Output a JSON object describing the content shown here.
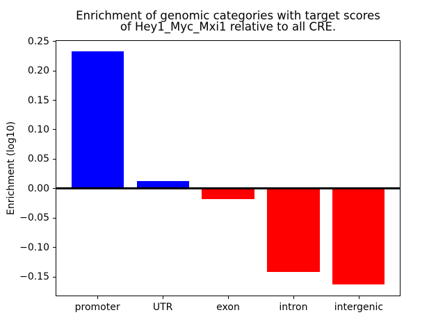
{
  "figure": {
    "title_line1": "Enrichment of genomic categories with target scores",
    "title_line2": "of Hey1_Myc_Mxi1 relative to all CRE."
  },
  "chart_data": {
    "type": "bar",
    "title": "Enrichment of genomic categories with target scores\nof Hey1_Myc_Mxi1 relative to all CRE.",
    "xlabel": "",
    "ylabel": "Enrichment (log10)",
    "categories": [
      "promoter",
      "UTR",
      "exon",
      "intron",
      "intergenic"
    ],
    "values": [
      0.233,
      0.013,
      -0.018,
      -0.142,
      -0.163
    ],
    "bar_colors": [
      "#0000ff",
      "#0000ff",
      "#ff0000",
      "#ff0000",
      "#ff0000"
    ],
    "positive_color": "#0000ff",
    "negative_color": "#ff0000",
    "ylim": [
      -0.183,
      0.252
    ],
    "yticks": [
      0.25,
      0.2,
      0.15,
      0.1,
      0.05,
      0.0,
      -0.05,
      -0.1,
      -0.15
    ],
    "ytick_labels": [
      "0.25",
      "0.20",
      "0.15",
      "0.10",
      "0.05",
      "0.00",
      "−0.05",
      "−0.10",
      "−0.15"
    ],
    "zero_line": true,
    "grid": false,
    "legend_position": "none"
  }
}
